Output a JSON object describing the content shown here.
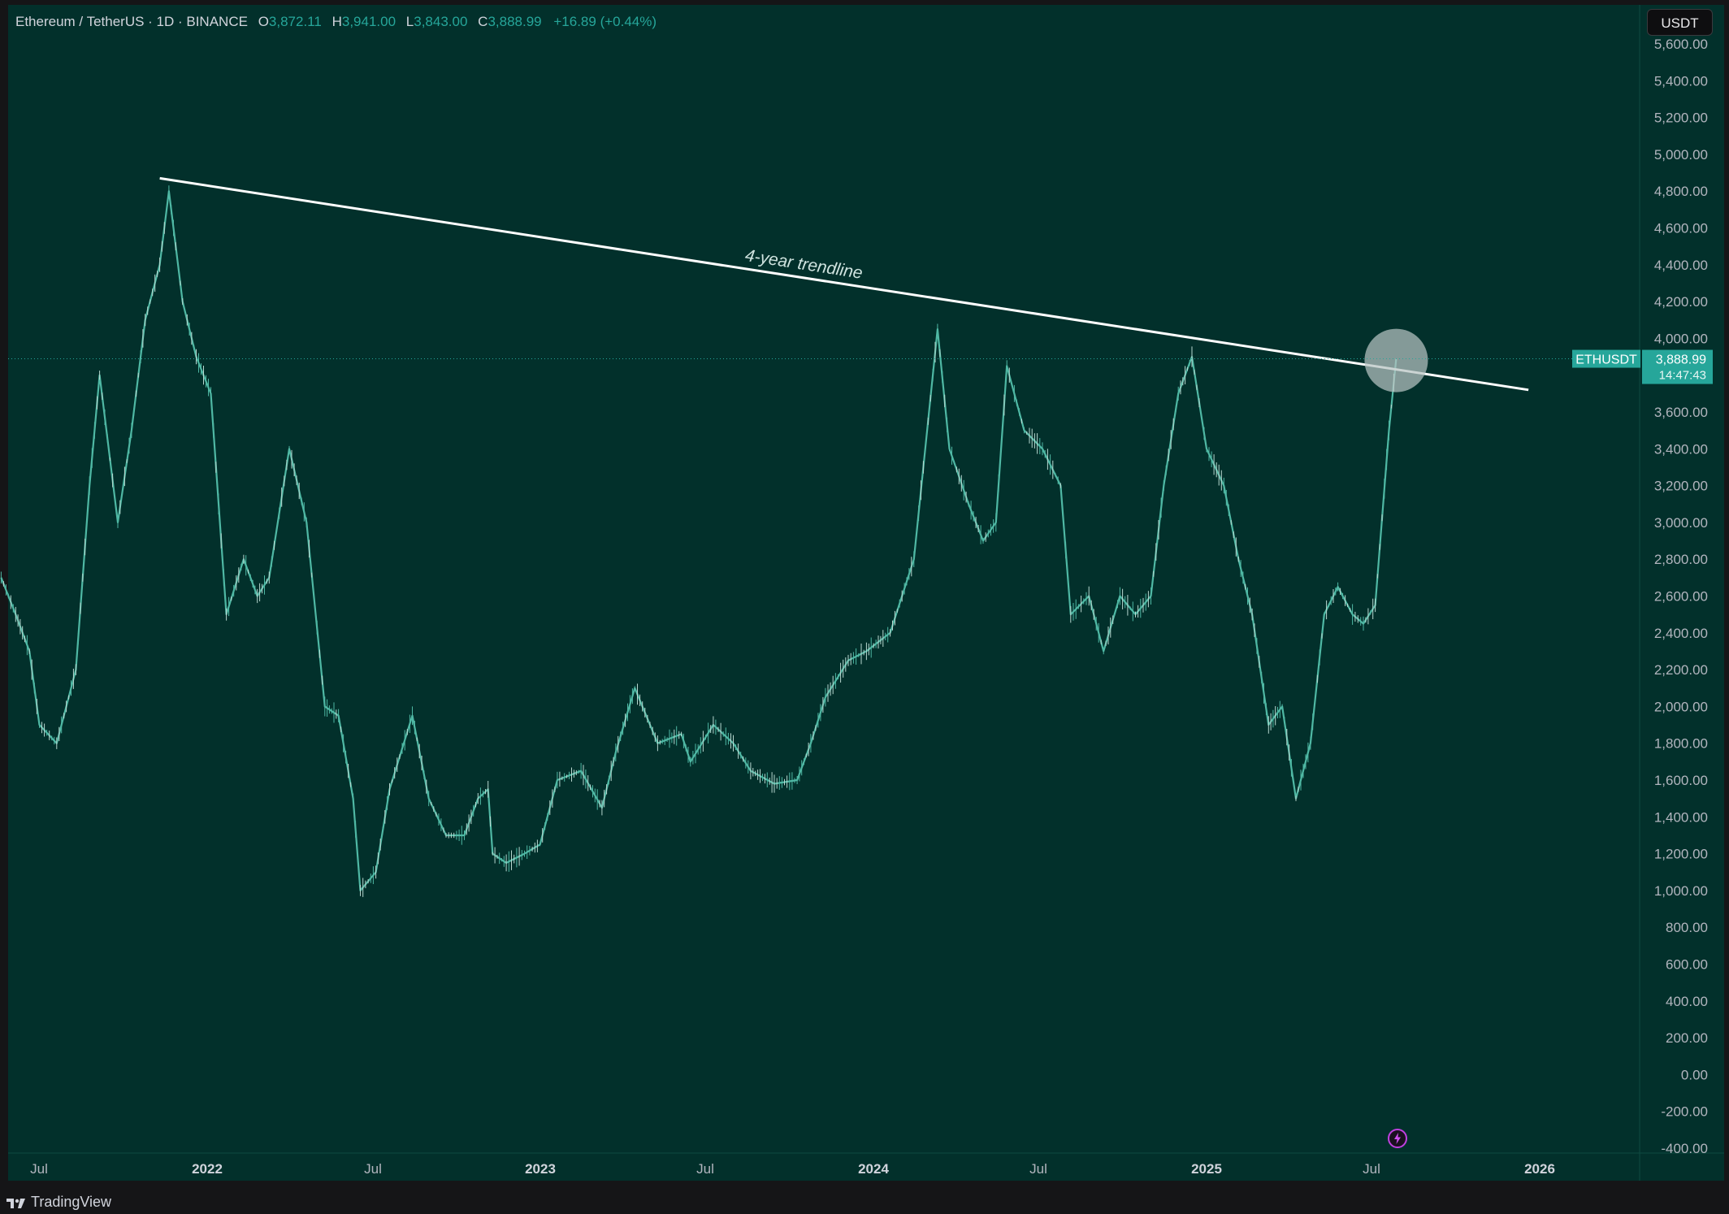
{
  "header": {
    "symbol": "Ethereum / TetherUS · 1D · BINANCE",
    "open_key": "O",
    "open": "3,872.11",
    "high_key": "H",
    "high": "3,941.00",
    "low_key": "L",
    "low": "3,843.00",
    "close_key": "C",
    "close": "3,888.99",
    "change": "+16.89 (+0.44%)"
  },
  "currency_button": "USDT",
  "brand": "TradingView",
  "icons": {
    "alert": "lightning-alert-icon",
    "logo": "tradingview-logo-icon"
  },
  "colors": {
    "background": "#02302b",
    "price_line": "#4fb8a4",
    "trendline": "#ffffff",
    "accent": "#26a69a",
    "highlight_circle": "#b7c4c2"
  },
  "price_label": {
    "symbol": "ETHUSDT",
    "price": "3,888.99",
    "countdown": "14:47:43"
  },
  "annotations": {
    "trendline_label": "4-year trendline"
  },
  "chart_data": {
    "type": "line",
    "title": "Ethereum / TetherUS · 1D · BINANCE",
    "xlabel": "",
    "ylabel": "",
    "ylim": [
      -400,
      5600
    ],
    "x_ticks": [
      "Jul",
      "2022",
      "Jul",
      "2023",
      "Jul",
      "2024",
      "Jul",
      "2025",
      "Jul",
      "2026"
    ],
    "y_ticks": [
      "5,600.00",
      "5,400.00",
      "5,200.00",
      "5,000.00",
      "4,800.00",
      "4,600.00",
      "4,400.00",
      "4,200.00",
      "4,000.00",
      "3,800.00",
      "3,600.00",
      "3,400.00",
      "3,200.00",
      "3,000.00",
      "2,800.00",
      "2,600.00",
      "2,400.00",
      "2,200.00",
      "2,000.00",
      "1,800.00",
      "1,600.00",
      "1,400.00",
      "1,200.00",
      "1,000.00",
      "800.00",
      "600.00",
      "400.00",
      "200.00",
      "0.00",
      "-200.00",
      "-400.00"
    ],
    "grid": false,
    "series": [
      {
        "values_note_absent": true,
        "x": [
          "2021-05-20",
          "2021-06-05",
          "2021-06-20",
          "2021-07-01",
          "2021-07-20",
          "2021-08-10",
          "2021-08-25",
          "2021-09-05",
          "2021-09-25",
          "2021-10-10",
          "2021-10-25",
          "2021-11-10",
          "2021-11-20",
          "2021-12-05",
          "2021-12-20",
          "2022-01-05",
          "2022-01-22",
          "2022-02-10",
          "2022-02-25",
          "2022-03-10",
          "2022-04-01",
          "2022-04-20",
          "2022-05-10",
          "2022-05-25",
          "2022-06-10",
          "2022-06-18",
          "2022-07-05",
          "2022-07-20",
          "2022-08-14",
          "2022-09-01",
          "2022-09-20",
          "2022-10-10",
          "2022-10-25",
          "2022-11-05",
          "2022-11-10",
          "2022-11-25",
          "2022-12-15",
          "2023-01-01",
          "2023-01-20",
          "2023-02-15",
          "2023-03-10",
          "2023-03-25",
          "2023-04-15",
          "2023-05-10",
          "2023-06-05",
          "2023-06-15",
          "2023-07-10",
          "2023-08-01",
          "2023-08-20",
          "2023-09-15",
          "2023-10-10",
          "2023-10-25",
          "2023-11-10",
          "2023-12-05",
          "2023-12-25",
          "2024-01-20",
          "2024-02-15",
          "2024-03-12",
          "2024-03-25",
          "2024-04-15",
          "2024-05-01",
          "2024-05-15",
          "2024-05-27",
          "2024-06-15",
          "2024-07-05",
          "2024-07-25",
          "2024-08-05",
          "2024-08-25",
          "2024-09-10",
          "2024-09-28",
          "2024-10-15",
          "2024-11-01",
          "2024-11-15",
          "2024-12-01",
          "2024-12-16",
          "2025-01-01",
          "2025-01-20",
          "2025-02-05",
          "2025-02-20",
          "2025-03-10",
          "2025-03-25",
          "2025-04-09",
          "2025-04-25",
          "2025-05-10",
          "2025-05-25",
          "2025-06-10",
          "2025-06-22",
          "2025-07-05",
          "2025-07-20",
          "2025-07-28"
        ],
        "values": [
          2700,
          2500,
          2300,
          1900,
          1800,
          2200,
          3200,
          3800,
          3000,
          3500,
          4100,
          4400,
          4800,
          4200,
          3900,
          3700,
          2500,
          2800,
          2600,
          2700,
          3400,
          3000,
          2000,
          1950,
          1500,
          1000,
          1100,
          1550,
          1950,
          1500,
          1300,
          1300,
          1500,
          1550,
          1200,
          1150,
          1200,
          1250,
          1600,
          1650,
          1450,
          1750,
          2100,
          1800,
          1850,
          1700,
          1900,
          1800,
          1650,
          1580,
          1600,
          1800,
          2050,
          2250,
          2300,
          2400,
          2800,
          4050,
          3400,
          3100,
          2900,
          3000,
          3850,
          3500,
          3400,
          3200,
          2500,
          2600,
          2300,
          2600,
          2500,
          2600,
          3200,
          3700,
          3900,
          3400,
          3200,
          2800,
          2500,
          1900,
          2000,
          1500,
          1800,
          2500,
          2650,
          2500,
          2450,
          2550,
          3500,
          3889
        ]
      }
    ],
    "annotations": [
      {
        "type": "trendline",
        "label": "4-year trendline",
        "from": {
          "x": "2021-11-10",
          "y": 4870
        },
        "to": {
          "x": "2025-12-20",
          "y": 3720
        }
      },
      {
        "type": "highlight-circle",
        "x": "2025-07-28",
        "y": 3880
      }
    ],
    "last_price": 3888.99
  }
}
